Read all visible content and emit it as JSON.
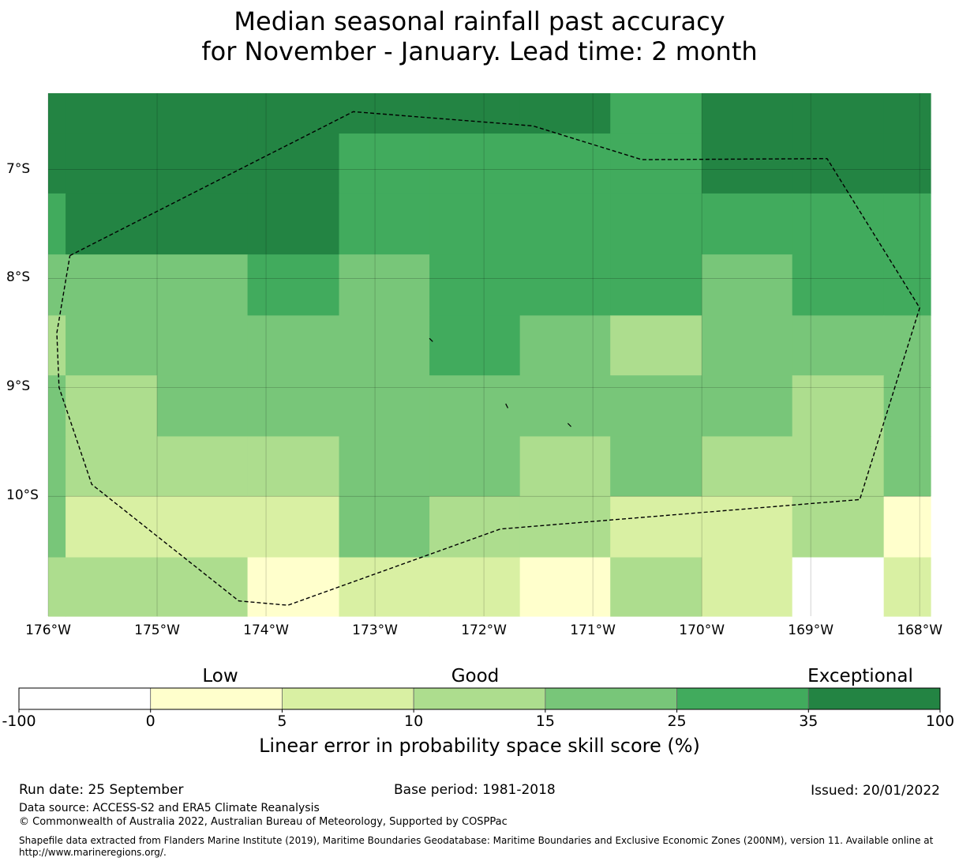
{
  "title": {
    "line1": "Median seasonal rainfall past accuracy",
    "line2": "for November - January. Lead time: 2 month"
  },
  "map": {
    "lon_range": [
      -176,
      -167.9
    ],
    "lat_range": [
      -6.3,
      -11.1
    ],
    "lat_ticks": [
      {
        "value": -7,
        "label": "7°S"
      },
      {
        "value": -8,
        "label": "8°S"
      },
      {
        "value": -9,
        "label": "9°S"
      },
      {
        "value": -10,
        "label": "10°S"
      }
    ],
    "lon_ticks": [
      {
        "value": -176,
        "label": "176°W"
      },
      {
        "value": -175,
        "label": "175°W"
      },
      {
        "value": -174,
        "label": "174°W"
      },
      {
        "value": -173,
        "label": "173°W"
      },
      {
        "value": -172,
        "label": "172°W"
      },
      {
        "value": -171,
        "label": "171°W"
      },
      {
        "value": -170,
        "label": "170°W"
      },
      {
        "value": -169,
        "label": "169°W"
      },
      {
        "value": -168,
        "label": "168°W"
      }
    ],
    "grid": true,
    "cell_lon_edges": [
      -176,
      -175.84,
      -175.0,
      -174.17,
      -173.33,
      -172.5,
      -171.67,
      -170.84,
      -170.0,
      -169.17,
      -168.33,
      -167.9
    ],
    "cell_lat_edges": [
      -6.3,
      -6.67,
      -7.22,
      -7.78,
      -8.34,
      -8.89,
      -9.45,
      -10.0,
      -10.56,
      -11.1
    ],
    "skill_categories": [
      [
        6,
        6,
        6,
        6,
        6,
        6,
        6,
        5,
        6,
        6,
        6
      ],
      [
        6,
        6,
        6,
        6,
        5,
        5,
        5,
        5,
        6,
        6,
        6
      ],
      [
        5,
        6,
        6,
        6,
        5,
        5,
        5,
        5,
        5,
        5,
        5
      ],
      [
        4,
        4,
        4,
        5,
        4,
        5,
        5,
        5,
        4,
        5,
        5
      ],
      [
        3,
        4,
        4,
        4,
        4,
        5,
        4,
        3,
        4,
        4,
        4
      ],
      [
        4,
        3,
        4,
        4,
        4,
        4,
        4,
        4,
        4,
        3,
        4
      ],
      [
        4,
        3,
        3,
        3,
        4,
        4,
        3,
        4,
        3,
        3,
        4
      ],
      [
        4,
        2,
        2,
        2,
        4,
        3,
        3,
        2,
        2,
        3,
        1
      ],
      [
        3,
        3,
        3,
        1,
        2,
        2,
        1,
        3,
        2,
        0,
        2
      ]
    ],
    "boundary_lonlat": [
      [
        -175.8,
        -7.79
      ],
      [
        -173.2,
        -6.47
      ],
      [
        -171.55,
        -6.6
      ],
      [
        -170.55,
        -6.91
      ],
      [
        -168.85,
        -6.9
      ],
      [
        -168.0,
        -8.27
      ],
      [
        -168.55,
        -10.03
      ],
      [
        -171.85,
        -10.3
      ],
      [
        -173.8,
        -11.0
      ],
      [
        -174.25,
        -10.96
      ],
      [
        -175.6,
        -9.89
      ],
      [
        -175.9,
        -9.0
      ],
      [
        -175.92,
        -8.5
      ],
      [
        -175.8,
        -7.79
      ]
    ],
    "islands_lonlat": [
      [
        [
          -172.5,
          -8.55
        ],
        [
          -172.47,
          -8.58
        ]
      ],
      [
        [
          -171.8,
          -9.15
        ],
        [
          -171.78,
          -9.19
        ]
      ],
      [
        [
          -171.23,
          -9.33
        ],
        [
          -171.2,
          -9.36
        ]
      ]
    ]
  },
  "colorbar": {
    "colors": [
      "#ffffff",
      "#ffffcc",
      "#d9f0a3",
      "#addd8e",
      "#78c679",
      "#41ab5d",
      "#238443"
    ],
    "ticks": [
      "-100",
      "0",
      "5",
      "10",
      "15",
      "25",
      "35",
      "100"
    ],
    "categories": [
      "Low",
      "Good",
      "Exceptional"
    ],
    "label": "Linear error in probability space skill score (%)"
  },
  "footer": {
    "run_date": "Run date: 25 September",
    "base_period": "Base period: 1981-2018",
    "issued": "Issued: 20/01/2022",
    "data_source": "Data source: ACCESS-S2 and ERA5 Climate Reanalysis",
    "copyright": "© Commonwealth of Australia 2022, Australian Bureau of Meteorology, Supported by COSPPac",
    "shapefile_line1": "Shapefile data extracted from Flanders Marine Institute (2019), Maritime Boundaries Geodatabase: Maritime Boundaries and Exclusive Economic Zones (200NM), version 11. Available online at",
    "shapefile_line2": "http://www.marineregions.org/."
  }
}
